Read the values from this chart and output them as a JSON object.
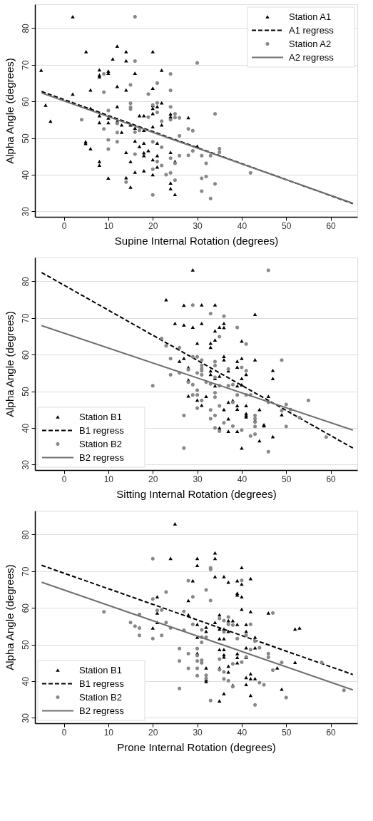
{
  "chart_data": [
    {
      "type": "scatter",
      "xlabel": "Supine Internal Rotation (degrees)",
      "ylabel": "Alpha Angle (degrees)",
      "xlim": [
        -6.5,
        66
      ],
      "ylim": [
        28.5,
        86.5
      ],
      "xticks": [
        0,
        10,
        20,
        30,
        40,
        50,
        60
      ],
      "yticks": [
        30,
        40,
        50,
        60,
        70,
        80
      ],
      "grid": "y",
      "legend": "top right",
      "series": [
        {
          "name": "Station A1",
          "type": "scatter",
          "marker": "triangle",
          "color": "#000000",
          "x": [
            2,
            -5.1,
            2,
            -4.1,
            -3,
            4.9,
            4.9,
            6,
            6,
            6,
            8,
            8,
            8,
            8,
            8,
            8,
            8,
            10,
            10,
            10,
            10,
            10,
            11,
            12,
            12,
            12,
            12,
            13,
            13,
            14,
            14,
            14,
            14,
            14,
            15,
            15,
            16,
            16,
            16,
            16,
            17,
            17,
            18,
            18,
            18,
            18,
            18,
            18,
            19,
            20,
            20,
            20,
            20,
            20,
            20,
            20,
            20,
            21,
            21,
            21,
            22,
            22,
            22,
            24,
            24,
            24,
            24,
            24,
            25,
            25,
            28,
            30,
            5,
            15,
            21
          ],
          "values": [
            83.1,
            68.5,
            62.0,
            59.0,
            54.6,
            49.0,
            48.5,
            47.1,
            63.1,
            58.1,
            68.6,
            67.2,
            66.7,
            56.1,
            54.2,
            43.6,
            42.6,
            68.3,
            67.7,
            55.5,
            54.2,
            39.1,
            71.6,
            75.1,
            64.1,
            58.6,
            54.6,
            53.6,
            51.6,
            73.6,
            71.1,
            63.1,
            46.1,
            39.2,
            53.6,
            36.6,
            52.7,
            67.7,
            49.2,
            40.7,
            56.1,
            47.7,
            56.1,
            52.1,
            48.6,
            46.0,
            45.2,
            41.1,
            46.6,
            73.6,
            63.6,
            58.9,
            58.1,
            56.7,
            53.1,
            44.1,
            40.0,
            58.6,
            45.2,
            42.1,
            68.5,
            59.6,
            53.6,
            56.6,
            55.8,
            46.1,
            37.7,
            36.2,
            43.6,
            34.6,
            55.6,
            47.8,
            73.6,
            43.6,
            48.6
          ]
        },
        {
          "name": "A1 regress",
          "type": "line",
          "line_style": "dashed",
          "color": "#000000",
          "x": [
            -5,
            65
          ],
          "values": [
            62.7,
            32.1
          ]
        },
        {
          "name": "Station A2",
          "type": "scatter",
          "marker": "circle",
          "color": "#888888",
          "x": [
            16,
            4,
            9,
            9,
            9,
            10,
            10,
            10,
            12,
            12,
            12,
            14,
            15,
            15,
            15,
            15,
            16,
            16,
            16,
            17,
            19,
            19,
            20,
            20,
            20,
            20,
            21,
            21,
            21,
            21,
            22,
            22,
            22,
            23,
            24,
            24,
            24,
            24,
            24,
            24,
            25,
            25,
            25,
            26,
            26,
            26,
            28,
            28,
            29,
            29,
            30,
            31,
            32,
            33,
            34,
            35,
            35,
            31,
            32,
            31,
            33,
            34,
            42,
            25
          ],
          "values": [
            83.1,
            55.0,
            62.5,
            52.5,
            67.5,
            57.5,
            49.5,
            47.0,
            49.0,
            51.5,
            54.0,
            38.0,
            64.5,
            59.5,
            58.4,
            57.9,
            71.0,
            51.6,
            45.6,
            52.1,
            55.7,
            62.0,
            59.0,
            49.0,
            41.5,
            34.5,
            65.0,
            59.6,
            57.0,
            43.6,
            54.6,
            47.5,
            42.5,
            40.0,
            67.5,
            63.0,
            58.5,
            55.0,
            44.5,
            40.5,
            56.6,
            55.6,
            38.5,
            55.5,
            50.6,
            45.2,
            52.5,
            45.3,
            52.0,
            46.5,
            70.5,
            45.2,
            43.1,
            45.2,
            56.6,
            47.1,
            46.1,
            39.0,
            39.5,
            35.5,
            33.5,
            37.5,
            40.5,
            43.1
          ]
        },
        {
          "name": "A2 regress",
          "type": "line",
          "line_style": "solid",
          "color": "#707070",
          "x": [
            -5,
            65
          ],
          "values": [
            62.3,
            32.2
          ]
        }
      ]
    },
    {
      "type": "scatter",
      "xlabel": "Sitting Internal Rotation (degrees)",
      "ylabel": "Alpha Angle (degrees)",
      "xlim": [
        -6.5,
        66
      ],
      "ylim": [
        28.5,
        86.5
      ],
      "xticks": [
        0,
        10,
        20,
        30,
        40,
        50,
        60
      ],
      "yticks": [
        30,
        40,
        50,
        60,
        70,
        80
      ],
      "grid": "y",
      "legend": "bottom left",
      "series": [
        {
          "name": "Station B1",
          "type": "scatter",
          "marker": "triangle",
          "color": "#000000",
          "x": [
            29,
            23,
            27,
            25,
            27,
            29,
            30,
            26,
            27,
            28,
            28,
            28,
            30,
            31,
            34,
            31,
            43,
            36,
            36,
            35,
            34,
            34,
            33,
            33,
            40,
            36,
            36,
            39,
            40,
            43,
            39,
            47,
            47,
            33,
            33,
            35,
            34,
            37,
            41,
            40,
            34,
            39,
            40,
            32,
            31,
            37,
            38,
            39,
            39,
            41,
            46,
            44,
            49,
            41,
            41,
            41,
            36,
            37,
            43,
            45,
            45,
            35,
            37,
            39,
            47,
            40,
            44
          ],
          "values": [
            83.1,
            75.0,
            73.5,
            68.5,
            68.1,
            67.5,
            63.1,
            58.2,
            59.0,
            56.5,
            53.1,
            48.7,
            47.6,
            73.6,
            73.6,
            68.5,
            71.0,
            68.5,
            67.4,
            67.5,
            66.5,
            64.0,
            63.1,
            62.0,
            63.7,
            59.5,
            58.6,
            58.2,
            59.0,
            58.6,
            56.6,
            55.7,
            53.5,
            55.6,
            54.6,
            54.1,
            53.5,
            55.6,
            54.6,
            53.5,
            51.5,
            51.5,
            51.8,
            48.6,
            46.2,
            47.0,
            47.5,
            46.1,
            45.1,
            46.1,
            48.6,
            45.0,
            43.6,
            43.9,
            43.4,
            43.0,
            45.0,
            42.5,
            42.1,
            40.9,
            40.6,
            40.0,
            39.1,
            39.1,
            37.6,
            34.5,
            36.5
          ]
        },
        {
          "name": "B1 regress",
          "type": "line",
          "line_style": "dashed",
          "color": "#000000",
          "x": [
            -5,
            65
          ],
          "values": [
            82.4,
            34.5
          ]
        },
        {
          "name": "Station B2",
          "type": "scatter",
          "marker": "circle",
          "color": "#888888",
          "x": [
            20,
            22,
            23,
            24,
            24,
            26,
            26,
            27,
            28,
            29,
            29,
            30,
            30,
            29,
            30,
            30,
            28,
            29,
            33,
            36,
            39,
            35,
            41,
            31,
            31,
            31,
            31,
            31,
            34,
            34,
            37,
            40,
            41,
            49,
            34,
            33,
            30,
            31,
            32,
            35,
            37,
            38,
            34,
            34,
            39,
            41,
            42,
            46,
            50,
            55,
            49,
            51,
            53,
            50,
            33,
            33,
            35,
            38,
            36,
            34,
            38,
            40,
            43,
            43,
            43,
            43,
            42,
            43,
            34,
            35,
            46,
            59,
            27,
            46
          ],
          "values": [
            51.5,
            64.4,
            62.4,
            58.9,
            54.5,
            61.9,
            55.0,
            43.4,
            52.5,
            59.4,
            51.8,
            59.4,
            55.0,
            49.0,
            49.0,
            45.4,
            55.9,
            73.5,
            71.2,
            70.5,
            67.4,
            64.9,
            62.9,
            58.5,
            57.0,
            56.2,
            55.6,
            54.5,
            58.1,
            57.0,
            56.1,
            56.5,
            55.6,
            58.5,
            53.8,
            52.0,
            50.3,
            47.5,
            52.5,
            51.5,
            51.5,
            51.8,
            49.6,
            48.4,
            49.0,
            49.0,
            49.0,
            47.0,
            46.4,
            47.5,
            44.7,
            45.0,
            42.8,
            40.4,
            44.9,
            42.5,
            46.0,
            47.0,
            41.4,
            43.4,
            40.5,
            39.4,
            43.4,
            42.5,
            41.6,
            40.4,
            37.8,
            38.3,
            40.0,
            39.1,
            83.0,
            37.5,
            34.5,
            33.5
          ]
        },
        {
          "name": "B2 regress",
          "type": "line",
          "line_style": "solid",
          "color": "#707070",
          "x": [
            -5,
            65
          ],
          "values": [
            67.9,
            39.4
          ]
        }
      ]
    },
    {
      "type": "scatter",
      "xlabel": "Prone Internal Rotation (degrees)",
      "ylabel": "Alpha Angle (degrees)",
      "xlim": [
        -6.5,
        66
      ],
      "ylim": [
        28.5,
        86.5
      ],
      "xticks": [
        0,
        10,
        20,
        30,
        40,
        50,
        60
      ],
      "yticks": [
        30,
        40,
        50,
        60,
        70,
        80
      ],
      "grid": "y",
      "legend": "bottom left",
      "series": [
        {
          "name": "Station B1",
          "type": "scatter",
          "marker": "triangle",
          "color": "#000000",
          "x": [
            24,
            21,
            21,
            21,
            20,
            28,
            28,
            29,
            30,
            30,
            30,
            30,
            30,
            25,
            34,
            34,
            40,
            34,
            36,
            37,
            39,
            40,
            42,
            39,
            39,
            40,
            40,
            42,
            46,
            35,
            34,
            37,
            38,
            39,
            41,
            32,
            32,
            35,
            36,
            37,
            41,
            52,
            53,
            35,
            36,
            43,
            41,
            43,
            35,
            36,
            36,
            36,
            39,
            39,
            41,
            52,
            32,
            37,
            37,
            35,
            48,
            39,
            32,
            32,
            41,
            42,
            42,
            43,
            41,
            38,
            49,
            36,
            42,
            35
          ],
          "values": [
            73.5,
            63.0,
            58.6,
            56.0,
            54.5,
            62.0,
            58.1,
            67.4,
            73.5,
            71.6,
            55.5,
            52.0,
            47.6,
            82.9,
            75.0,
            73.5,
            71.0,
            68.5,
            68.5,
            67.0,
            67.4,
            66.5,
            68.0,
            64.0,
            63.5,
            63.0,
            59.6,
            59.0,
            58.6,
            58.1,
            56.0,
            56.5,
            56.5,
            55.5,
            55.5,
            54.7,
            53.6,
            54.2,
            54.2,
            53.6,
            53.6,
            54.2,
            54.5,
            51.6,
            51.6,
            52.0,
            49.1,
            49.1,
            48.6,
            48.6,
            47.2,
            46.6,
            47.5,
            46.5,
            46.5,
            45.1,
            43.6,
            44.1,
            42.5,
            43.6,
            43.6,
            45.0,
            40.4,
            39.9,
            41.0,
            42.0,
            40.7,
            40.7,
            39.1,
            38.9,
            37.8,
            36.6,
            36.1,
            34.6
          ]
        },
        {
          "name": "B1 regress",
          "type": "line",
          "line_style": "dashed",
          "color": "#000000",
          "x": [
            -5,
            65
          ],
          "values": [
            71.6,
            41.8
          ]
        },
        {
          "name": "Station B2",
          "type": "scatter",
          "marker": "circle",
          "color": "#888888",
          "x": [
            20,
            20,
            23,
            9,
            15,
            16,
            17,
            17,
            17,
            20,
            22,
            21,
            22,
            23,
            24,
            27,
            27,
            28,
            29,
            29,
            26,
            26,
            28,
            28,
            26,
            30,
            30,
            30,
            30,
            30,
            31,
            31,
            31,
            31,
            31,
            32,
            32,
            32,
            32,
            33,
            33,
            33,
            33,
            35,
            35,
            35,
            36,
            36,
            36,
            36,
            37,
            37,
            37,
            38,
            38,
            38,
            39,
            40,
            40,
            41,
            41,
            42,
            42,
            43,
            44,
            43,
            44,
            45,
            46,
            46,
            47,
            47,
            49,
            50,
            58,
            63
          ],
          "values": [
            73.4,
            62.4,
            64.3,
            58.9,
            56.0,
            55.0,
            54.5,
            58.2,
            52.5,
            51.6,
            52.5,
            59.3,
            59.4,
            56.0,
            54.5,
            59.0,
            53.9,
            67.4,
            63.0,
            55.5,
            48.9,
            45.5,
            47.5,
            43.5,
            38.0,
            48.9,
            47.0,
            45.5,
            43.5,
            41.5,
            54.0,
            52.0,
            50.6,
            45.7,
            45.0,
            64.9,
            52.0,
            41.6,
            40.7,
            70.9,
            70.5,
            62.0,
            34.7,
            57.1,
            46.0,
            43.1,
            56.5,
            53.4,
            40.6,
            42.5,
            57.5,
            55.5,
            40.1,
            55.3,
            44.7,
            38.5,
            51.6,
            67.5,
            45.2,
            52.5,
            46.6,
            55.5,
            48.6,
            50.9,
            49.1,
            33.5,
            39.6,
            39.0,
            47.5,
            46.5,
            58.6,
            43.0,
            45.1,
            35.5,
            45.1,
            37.5
          ]
        },
        {
          "name": "B2 regress",
          "type": "line",
          "line_style": "solid",
          "color": "#707070",
          "x": [
            -5,
            65
          ],
          "values": [
            67.0,
            37.6
          ]
        }
      ]
    }
  ]
}
